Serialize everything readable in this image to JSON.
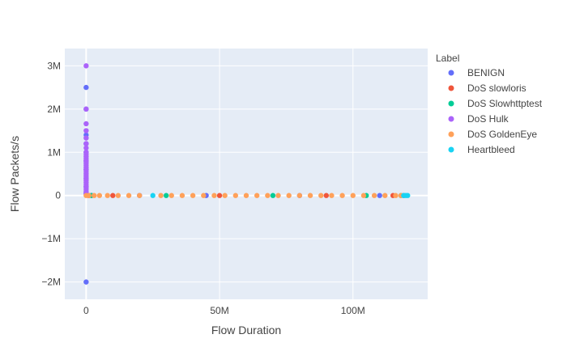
{
  "chart_data": {
    "type": "scatter",
    "title": "",
    "xlabel": "Flow Duration",
    "ylabel": "Flow Packets/s",
    "xlim": [
      -8000000,
      128000000
    ],
    "ylim": [
      -2400000,
      3400000
    ],
    "x_ticks": [
      {
        "value": 0,
        "label": "0"
      },
      {
        "value": 50000000,
        "label": "50M"
      },
      {
        "value": 100000000,
        "label": "100M"
      }
    ],
    "y_ticks": [
      {
        "value": 3000000,
        "label": "3M"
      },
      {
        "value": 2000000,
        "label": "2M"
      },
      {
        "value": 1000000,
        "label": "1M"
      },
      {
        "value": 0,
        "label": "0"
      },
      {
        "value": -1000000,
        "label": "−1M"
      },
      {
        "value": -2000000,
        "label": "−2M"
      }
    ],
    "grid": true,
    "legend_title": "Label",
    "legend_position": "right",
    "series": [
      {
        "name": "BENIGN",
        "color": "#636efa",
        "points": [
          [
            0,
            2500000
          ],
          [
            0,
            2000000
          ],
          [
            0,
            1400000
          ],
          [
            0,
            1200000
          ],
          [
            0,
            1000000
          ],
          [
            0,
            800000
          ],
          [
            0,
            600000
          ],
          [
            0,
            400000
          ],
          [
            0,
            200000
          ],
          [
            0,
            50000
          ],
          [
            0,
            -2000000
          ],
          [
            500000,
            5000
          ],
          [
            2000000,
            2000
          ],
          [
            20000000,
            1000
          ],
          [
            45000000,
            500
          ],
          [
            80000000,
            300
          ],
          [
            110000000,
            100
          ],
          [
            119000000,
            50
          ]
        ]
      },
      {
        "name": "DoS slowloris",
        "color": "#ef553b",
        "points": [
          [
            1000000,
            20
          ],
          [
            10000000,
            10
          ],
          [
            50000000,
            5
          ],
          [
            90000000,
            3
          ],
          [
            115000000,
            2
          ]
        ]
      },
      {
        "name": "DoS Slowhttptest",
        "color": "#00cc96",
        "points": [
          [
            2000000,
            15
          ],
          [
            30000000,
            8
          ],
          [
            70000000,
            4
          ],
          [
            105000000,
            3
          ],
          [
            118000000,
            2
          ]
        ]
      },
      {
        "name": "DoS Hulk",
        "color": "#ab63fa",
        "points": [
          [
            0,
            3000000
          ],
          [
            0,
            2000000
          ],
          [
            0,
            1660000
          ],
          [
            0,
            1500000
          ],
          [
            0,
            1330000
          ],
          [
            0,
            1200000
          ],
          [
            0,
            1100000
          ],
          [
            0,
            1000000
          ],
          [
            0,
            950000
          ],
          [
            0,
            900000
          ],
          [
            0,
            850000
          ],
          [
            0,
            800000
          ],
          [
            0,
            750000
          ],
          [
            0,
            700000
          ],
          [
            0,
            650000
          ],
          [
            0,
            600000
          ],
          [
            0,
            550000
          ],
          [
            0,
            500000
          ],
          [
            0,
            450000
          ],
          [
            0,
            400000
          ],
          [
            0,
            350000
          ],
          [
            0,
            300000
          ],
          [
            0,
            250000
          ],
          [
            0,
            200000
          ],
          [
            0,
            150000
          ],
          [
            0,
            100000
          ],
          [
            0,
            60000
          ],
          [
            0,
            30000
          ]
        ]
      },
      {
        "name": "DoS GoldenEye",
        "color": "#ffa15a",
        "points": [
          [
            0,
            0
          ],
          [
            1000000,
            0
          ],
          [
            3000000,
            0
          ],
          [
            5000000,
            0
          ],
          [
            8000000,
            0
          ],
          [
            12000000,
            0
          ],
          [
            16000000,
            0
          ],
          [
            20000000,
            0
          ],
          [
            28000000,
            0
          ],
          [
            32000000,
            0
          ],
          [
            36000000,
            0
          ],
          [
            40000000,
            0
          ],
          [
            44000000,
            0
          ],
          [
            48000000,
            0
          ],
          [
            52000000,
            0
          ],
          [
            56000000,
            0
          ],
          [
            60000000,
            0
          ],
          [
            64000000,
            0
          ],
          [
            68000000,
            0
          ],
          [
            72000000,
            0
          ],
          [
            76000000,
            0
          ],
          [
            80000000,
            0
          ],
          [
            84000000,
            0
          ],
          [
            88000000,
            0
          ],
          [
            92000000,
            0
          ],
          [
            96000000,
            0
          ],
          [
            100000000,
            0
          ],
          [
            104000000,
            0
          ],
          [
            108000000,
            0
          ],
          [
            112000000,
            0
          ],
          [
            116000000,
            0
          ],
          [
            118000000,
            0
          ]
        ]
      },
      {
        "name": "Heartbleed",
        "color": "#19d3f3",
        "points": [
          [
            25000000,
            0
          ],
          [
            119000000,
            0
          ],
          [
            119800000,
            0
          ],
          [
            120500000,
            0
          ]
        ]
      }
    ]
  }
}
